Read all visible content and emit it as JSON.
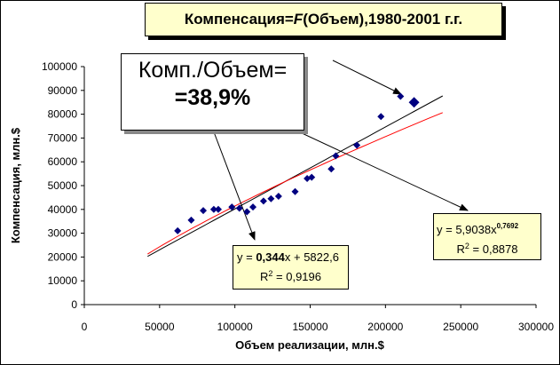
{
  "chart_data": {
    "type": "scatter",
    "title": {
      "before": "Компенсация=",
      "italic": "F",
      "after": "(Объем),1980-2001 г.г."
    },
    "xlabel": "Объем реализации, млн.$",
    "ylabel": "Компенсация, млн.$",
    "xlim": [
      0,
      300000
    ],
    "ylim": [
      0,
      100000
    ],
    "x_ticks": [
      "0",
      "50000",
      "100000",
      "150000",
      "200000",
      "250000",
      "300000"
    ],
    "y_ticks": [
      "0",
      "10000",
      "20000",
      "30000",
      "40000",
      "50000",
      "60000",
      "70000",
      "80000",
      "90000",
      "100000"
    ],
    "grid": false,
    "points": [
      {
        "x": 62000,
        "y": 31000
      },
      {
        "x": 71000,
        "y": 35500
      },
      {
        "x": 79000,
        "y": 39500
      },
      {
        "x": 86000,
        "y": 40000
      },
      {
        "x": 89000,
        "y": 40000
      },
      {
        "x": 98000,
        "y": 41000
      },
      {
        "x": 103000,
        "y": 40500
      },
      {
        "x": 108000,
        "y": 39000
      },
      {
        "x": 112000,
        "y": 41000
      },
      {
        "x": 119000,
        "y": 43500
      },
      {
        "x": 124000,
        "y": 44500
      },
      {
        "x": 129000,
        "y": 45500
      },
      {
        "x": 140000,
        "y": 47500
      },
      {
        "x": 148000,
        "y": 53000
      },
      {
        "x": 151000,
        "y": 53500
      },
      {
        "x": 164000,
        "y": 57000
      },
      {
        "x": 167000,
        "y": 62500
      },
      {
        "x": 181000,
        "y": 67000
      },
      {
        "x": 197000,
        "y": 79000
      },
      {
        "x": 210000,
        "y": 87500
      },
      {
        "x": 219000,
        "y": 85000,
        "highlight": true
      }
    ],
    "trendlines": [
      {
        "type": "linear",
        "color": "#000000",
        "x_range": [
          42000,
          238000
        ],
        "slope": 0.344,
        "intercept": 5822.6,
        "equation": {
          "prefix": "y = ",
          "coef": "0,344",
          "suffix": "x + 5822,6"
        },
        "r2_label": "R",
        "r2_value": " = 0,9196"
      },
      {
        "type": "power",
        "color": "#ff0000",
        "x_range": [
          42000,
          238000
        ],
        "coef": 5.9038,
        "exponent": 0.7692,
        "equation": {
          "prefix": "y = 5,9038x",
          "exponent": "0,7692"
        },
        "r2_label": "R",
        "r2_value": " = 0,8878"
      }
    ],
    "annotation": {
      "label": "Комп./Объем=",
      "value": "=38,9%"
    },
    "colors": {
      "points": "#000080",
      "linear": "#000000",
      "power": "#ff0000",
      "callout_fill": "#ffffcc"
    }
  }
}
